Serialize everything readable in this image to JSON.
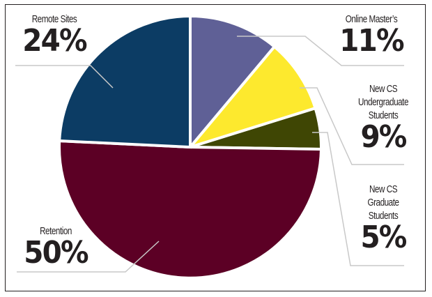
{
  "chart_data": {
    "type": "pie",
    "title": "",
    "exploded": true,
    "start_angle_deg": 0,
    "direction": "clockwise-from-top",
    "slices": [
      {
        "key": "online",
        "label": "Online Master’s",
        "value": 11,
        "pct_text": "11%",
        "color": "#5f6096"
      },
      {
        "key": "undergrad",
        "label": "New CS Undergraduate Students",
        "value": 9,
        "pct_text": "9%",
        "color": "#fde92e"
      },
      {
        "key": "grad",
        "label": "New CS Graduate Students",
        "value": 5,
        "pct_text": "5%",
        "color": "#3f4604"
      },
      {
        "key": "retention",
        "label": "Retention",
        "value": 50,
        "pct_text": "50%",
        "color": "#5c0025"
      },
      {
        "key": "remote",
        "label": "Remote Sites",
        "value": 24,
        "pct_text": "24%",
        "color": "#0c3c64"
      }
    ],
    "legend": "none (callout labels with leader lines)"
  },
  "labels": {
    "remote": {
      "name_lines": [
        "Remote Sites"
      ],
      "pct": "24%"
    },
    "online": {
      "name_lines": [
        "Online Master’s"
      ],
      "pct": "11%"
    },
    "undergrad": {
      "name_lines": [
        "New CS",
        "Undergraduate",
        "Students"
      ],
      "pct": "9%"
    },
    "grad": {
      "name_lines": [
        "New CS",
        "Graduate",
        "Students"
      ],
      "pct": "5%"
    },
    "retention": {
      "name_lines": [
        "Retention"
      ],
      "pct": "50%"
    }
  },
  "style": {
    "leader_color": "#c8c8c8",
    "text_color": "#231f20",
    "border_color": "#231f20"
  }
}
